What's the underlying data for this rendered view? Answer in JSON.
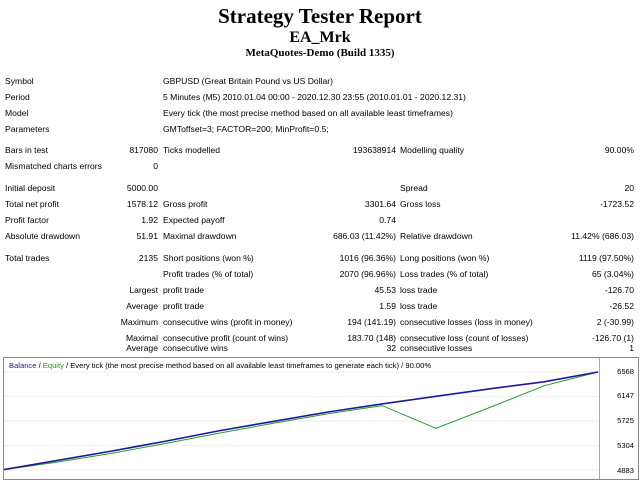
{
  "report": {
    "title": "Strategy Tester Report",
    "ea_name": "EA_Mrk",
    "terminal": "MetaQuotes-Demo (Build 1335)"
  },
  "info": {
    "symbol_label": "Symbol",
    "symbol": "GBPUSD (Great Britain Pound vs US Dollar)",
    "period_label": "Period",
    "period": "5 Minutes (M5) 2010.01.04 00:00 - 2020.12.30 23:55 (2010.01.01 - 2020.12.31)",
    "model_label": "Model",
    "model": "Every tick (the most precise method based on all available least timeframes)",
    "params_label": "Parameters",
    "params": "GMToffset=3; FACTOR=200; MinProfit=0.5;"
  },
  "stats": {
    "bars_label": "Bars in test",
    "bars": "817080",
    "ticks_label": "Ticks modelled",
    "ticks": "193638914",
    "quality_label": "Modelling quality",
    "quality": "90.00%",
    "mismatch_label": "Mismatched charts errors",
    "mismatch": "0",
    "deposit_label": "Initial deposit",
    "deposit": "5000.00",
    "spread_label": "Spread",
    "spread": "20",
    "netprofit_label": "Total net profit",
    "netprofit": "1578.12",
    "grossprofit_label": "Gross profit",
    "grossprofit": "3301.64",
    "grossloss_label": "Gross loss",
    "grossloss": "-1723.52",
    "pf_label": "Profit factor",
    "pf": "1.92",
    "payoff_label": "Expected payoff",
    "payoff": "0.74",
    "absdd_label": "Absolute drawdown",
    "absdd": "51.91",
    "maxdd_label": "Maximal drawdown",
    "maxdd": "686.03 (11.42%)",
    "reldd_label": "Relative drawdown",
    "reldd": "11.42% (686.03)"
  },
  "trades": {
    "total_label": "Total trades",
    "total": "2135",
    "short_label": "Short positions (won %)",
    "short": "1016 (96.36%)",
    "long_label": "Long positions (won %)",
    "long": "1119 (97.50%)",
    "profit_trades_label": "Profit trades (% of total)",
    "profit_trades": "2070 (96.96%)",
    "loss_trades_label": "Loss trades (% of total)",
    "loss_trades": "65 (3.04%)",
    "largest_label": "Largest",
    "largest_profit_label": "profit trade",
    "largest_profit": "45.53",
    "largest_loss_label": "loss trade",
    "largest_loss": "-126.70",
    "average_label": "Average",
    "average_profit_label": "profit trade",
    "average_profit": "1.59",
    "average_loss_label": "loss trade",
    "average_loss": "-26.52",
    "maximum_label": "Maximum",
    "max_wins_label": "consecutive wins (profit in money)",
    "max_wins": "194 (141.19)",
    "max_losses_label": "consecutive losses (loss in money)",
    "max_losses": "2 (-30.99)",
    "maximal_label": "Maximal",
    "maximal_profit_label": "consecutive profit (count of wins)",
    "maximal_profit": "183.70 (148)",
    "maximal_loss_label": "consecutive loss (count of losses)",
    "maximal_loss": "-126.70 (1)",
    "avg_label": "Average",
    "avg_wins_label": "consecutive wins",
    "avg_wins": "32",
    "avg_losses_label": "consecutive losses",
    "avg_losses": "1"
  },
  "graph": {
    "legend_balance": "Balance",
    "legend_sep": " / ",
    "legend_equity": "Equity",
    "legend_rest": " / Every tick (the most precise method based on all available least timeframes to generate each tick) / 90.00%",
    "yticks": [
      "6568",
      "6147",
      "5725",
      "5304",
      "4883"
    ],
    "colors": {
      "balance": "#1a1aa0",
      "equity": "#2a9a2a"
    }
  },
  "chart_data": {
    "type": "line",
    "ylim": [
      4883,
      6568
    ],
    "yticks": [
      6568,
      6147,
      5725,
      5304,
      4883
    ],
    "series": [
      {
        "name": "Balance",
        "values": [
          4890,
          5050,
          5210,
          5380,
          5560,
          5720,
          5880,
          6020,
          6150,
          6280,
          6400,
          6568
        ]
      },
      {
        "name": "Equity",
        "values": [
          4890,
          5020,
          5170,
          5340,
          5520,
          5690,
          5850,
          5990,
          5600,
          5960,
          6330,
          6568
        ]
      }
    ]
  }
}
